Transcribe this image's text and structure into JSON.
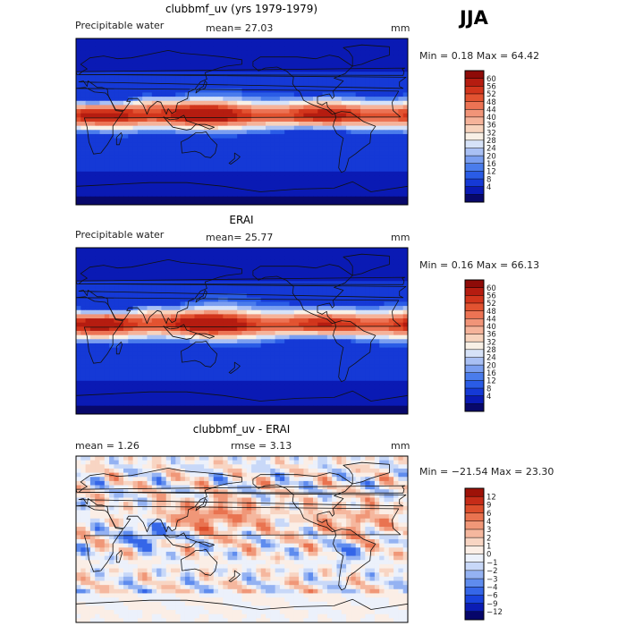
{
  "season": "JJA",
  "colors": {
    "main_scale": [
      "#08086a",
      "#0a1ab4",
      "#1539d6",
      "#2a5ce6",
      "#4a7cec",
      "#7a9ef0",
      "#a9c0f4",
      "#d6e2f8",
      "#f8f0e6",
      "#f7d3bd",
      "#f5b39a",
      "#f19478",
      "#ec7354",
      "#e25331",
      "#d2351c",
      "#b51c10",
      "#8e0b08"
    ],
    "diff_scale": [
      "#06066a",
      "#0b1cb4",
      "#1942dc",
      "#3566e8",
      "#5f8cee",
      "#94b2f2",
      "#c8d8f8",
      "#ecf1fb",
      "#fbeee6",
      "#f8d5c3",
      "#f5b79e",
      "#f09778",
      "#e97350",
      "#dc4e2c",
      "#c62c18",
      "#9e1208"
    ],
    "land_outline": "#111111"
  },
  "panels": [
    {
      "title": "clubbmf_uv (yrs 1979-1979)",
      "left_label": "Precipitable water",
      "mean_text": "mean=  27.03",
      "unit": "mm",
      "minmax_text": "Min =   0.18 Max =  64.42",
      "colorbar_key": "main"
    },
    {
      "title": "ERAI",
      "left_label": "Precipitable water",
      "mean_text": "mean=  25.77",
      "unit": "mm",
      "minmax_text": "Min =   0.16 Max =  66.13",
      "colorbar_key": "main"
    },
    {
      "title": "clubbmf_uv - ERAI",
      "left_label": "mean =    1.26",
      "mean_text": "rmse =    3.13",
      "unit": "mm",
      "minmax_text": "Min = −21.54 Max =  23.30",
      "colorbar_key": "diff"
    }
  ],
  "chart_data": [
    {
      "type": "heatmap",
      "title": "clubbmf_uv (yrs 1979-1979)",
      "variable": "Precipitable water",
      "units": "mm",
      "mean": 27.03,
      "min": 0.18,
      "max": 64.42,
      "colorbar_levels": [
        4,
        8,
        12,
        16,
        20,
        24,
        28,
        32,
        36,
        40,
        44,
        48,
        52,
        56,
        60
      ]
    },
    {
      "type": "heatmap",
      "title": "ERAI",
      "variable": "Precipitable water",
      "units": "mm",
      "mean": 25.77,
      "min": 0.16,
      "max": 66.13,
      "colorbar_levels": [
        4,
        8,
        12,
        16,
        20,
        24,
        28,
        32,
        36,
        40,
        44,
        48,
        52,
        56,
        60
      ]
    },
    {
      "type": "heatmap",
      "title": "clubbmf_uv - ERAI",
      "units": "mm",
      "mean": 1.26,
      "rmse": 3.13,
      "min": -21.54,
      "max": 23.3,
      "colorbar_levels": [
        -12,
        -9,
        -6,
        -4,
        -3,
        -2,
        -1,
        0,
        1,
        2,
        3,
        4,
        6,
        9,
        12
      ]
    }
  ],
  "colorbar_labels": {
    "main": [
      "60",
      "56",
      "52",
      "48",
      "44",
      "40",
      "36",
      "32",
      "28",
      "24",
      "20",
      "16",
      "12",
      "8",
      "4"
    ],
    "diff": [
      "12",
      "9",
      "6",
      "4",
      "3",
      "2",
      "1",
      "0",
      "−1",
      "−2",
      "−3",
      "−4",
      "−6",
      "−9",
      "−12"
    ]
  }
}
